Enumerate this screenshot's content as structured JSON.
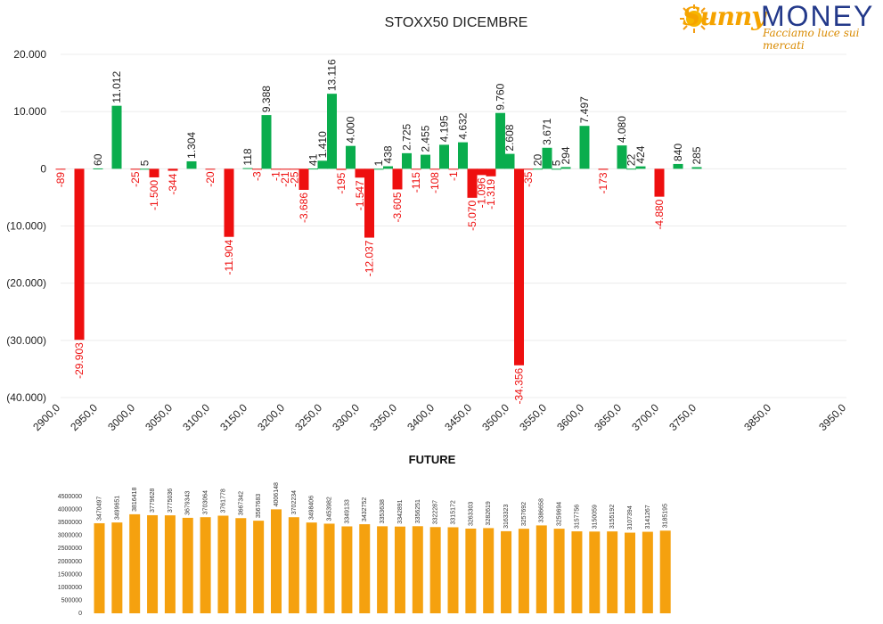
{
  "logo": {
    "part1": "Sunny",
    "part2": "MONEY",
    "tagline": "Facciamo luce sui mercati"
  },
  "colors": {
    "positive": "#0aad4d",
    "negative": "#ee0f0f",
    "future": "#f5a10f",
    "grid": "#ececec",
    "axis": "#bbbbbb"
  },
  "chart_data": [
    {
      "type": "bar",
      "title": "STOXX50 DICEMBRE",
      "ylim": [
        -40000,
        20000
      ],
      "yticks": [
        20000,
        10000,
        0,
        -10000,
        -20000,
        -30000,
        -40000
      ],
      "ytick_labels": [
        "20.000",
        "10.000",
        "0",
        "(10.000)",
        "(20.000)",
        "(30.000)",
        "(40.000)"
      ],
      "xlim": [
        2900,
        3950
      ],
      "xticks": [
        2900,
        2950,
        3000,
        3050,
        3100,
        3150,
        3200,
        3250,
        3300,
        3350,
        3400,
        3450,
        3500,
        3550,
        3600,
        3650,
        3700,
        3750,
        3850,
        3950
      ],
      "xtick_labels": [
        "2900,0",
        "2950,0",
        "3000,0",
        "3050,0",
        "3100,0",
        "3150,0",
        "3200,0",
        "3250,0",
        "3300,0",
        "3350,0",
        "3400,0",
        "3450,0",
        "3500,0",
        "3550,0",
        "3600,0",
        "3650,0",
        "3700,0",
        "3750,0",
        "3850,0",
        "3950,0"
      ],
      "series": [
        {
          "points": [
            {
              "x": 2900,
              "y": -89,
              "label": "-89"
            },
            {
              "x": 2925,
              "y": -29903,
              "label": "-29.903"
            },
            {
              "x": 2950,
              "y": 60,
              "label": "60"
            },
            {
              "x": 2975,
              "y": 11012,
              "label": "11.012"
            },
            {
              "x": 3000,
              "y": -25,
              "label": "-25"
            },
            {
              "x": 3012.5,
              "y": 5,
              "label": "5"
            },
            {
              "x": 3025,
              "y": -1500,
              "label": "-1.500"
            },
            {
              "x": 3050,
              "y": -344,
              "label": "-344"
            },
            {
              "x": 3075,
              "y": 1304,
              "label": "1.304"
            },
            {
              "x": 3100,
              "y": -20,
              "label": "-20"
            },
            {
              "x": 3125,
              "y": -11904,
              "label": "-11.904"
            },
            {
              "x": 3150,
              "y": 118,
              "label": "118"
            },
            {
              "x": 3162.5,
              "y": -3,
              "label": "-3"
            },
            {
              "x": 3175,
              "y": 9388,
              "label": "9.388"
            },
            {
              "x": 3187.5,
              "y": -1,
              "label": "-1"
            },
            {
              "x": 3200,
              "y": -21,
              "label": "-21"
            },
            {
              "x": 3212.5,
              "y": -25,
              "label": "-25"
            },
            {
              "x": 3225,
              "y": -3686,
              "label": "-3.686"
            },
            {
              "x": 3237.5,
              "y": 41,
              "label": "41"
            },
            {
              "x": 3250,
              "y": 1410,
              "label": "1.410"
            },
            {
              "x": 3262.5,
              "y": 13116,
              "label": "13.116"
            },
            {
              "x": 3275,
              "y": -195,
              "label": "-195"
            },
            {
              "x": 3287.5,
              "y": 4000,
              "label": "4.000"
            },
            {
              "x": 3300,
              "y": -1547,
              "label": "-1.547"
            },
            {
              "x": 3312.5,
              "y": -12037,
              "label": "-12.037"
            },
            {
              "x": 3325,
              "y": 1,
              "label": "1"
            },
            {
              "x": 3337.5,
              "y": 438,
              "label": "438"
            },
            {
              "x": 3350,
              "y": -3605,
              "label": "-3.605"
            },
            {
              "x": 3362.5,
              "y": 2725,
              "label": "2.725"
            },
            {
              "x": 3375,
              "y": -115,
              "label": "-115"
            },
            {
              "x": 3387.5,
              "y": 2455,
              "label": "2.455"
            },
            {
              "x": 3400,
              "y": -108,
              "label": "-108"
            },
            {
              "x": 3412.5,
              "y": 4195,
              "label": "4.195"
            },
            {
              "x": 3425,
              "y": -1,
              "label": "-1"
            },
            {
              "x": 3437.5,
              "y": 4632,
              "label": "4.632"
            },
            {
              "x": 3450,
              "y": -5070,
              "label": "-5.070"
            },
            {
              "x": 3462.5,
              "y": -1096,
              "label": "-1.096"
            },
            {
              "x": 3475,
              "y": -1319,
              "label": "-1.319"
            },
            {
              "x": 3487.5,
              "y": 9760,
              "label": "9.760"
            },
            {
              "x": 3500,
              "y": 2608,
              "label": "2.608"
            },
            {
              "x": 3512.5,
              "y": -34356,
              "label": "-34.356"
            },
            {
              "x": 3525,
              "y": -35,
              "label": "-35"
            },
            {
              "x": 3537.5,
              "y": 20,
              "label": "20"
            },
            {
              "x": 3550,
              "y": 3671,
              "label": "3.671"
            },
            {
              "x": 3562.5,
              "y": 5,
              "label": "5"
            },
            {
              "x": 3575,
              "y": 294,
              "label": "294"
            },
            {
              "x": 3600,
              "y": 7497,
              "label": "7.497"
            },
            {
              "x": 3625,
              "y": -173,
              "label": "-173"
            },
            {
              "x": 3650,
              "y": 4080,
              "label": "4.080"
            },
            {
              "x": 3662.5,
              "y": 22,
              "label": "22"
            },
            {
              "x": 3675,
              "y": 424,
              "label": "424"
            },
            {
              "x": 3700,
              "y": -4880,
              "label": "-4.880"
            },
            {
              "x": 3725,
              "y": 840,
              "label": "840"
            },
            {
              "x": 3750,
              "y": 285,
              "label": "285"
            }
          ]
        }
      ]
    },
    {
      "type": "bar",
      "title": "FUTURE",
      "ylim": [
        0,
        4500000
      ],
      "yticks": [
        0,
        500000,
        1000000,
        1500000,
        2000000,
        2500000,
        3000000,
        3500000,
        4000000,
        4500000
      ],
      "ytick_labels": [
        "0",
        "500000",
        "1000000",
        "1500000",
        "2000000",
        "2500000",
        "3000000",
        "3500000",
        "4000000",
        "4500000"
      ],
      "values": [
        3470497,
        3499651,
        3816418,
        3779628,
        3775036,
        3679343,
        3703064,
        3761778,
        3667342,
        3567683,
        4006148,
        3702234,
        3498406,
        3453982,
        3349133,
        3432752,
        3353638,
        3342891,
        3356251,
        3322287,
        3315172,
        3263303,
        3282619,
        3163323,
        3257692,
        3386658,
        3259694,
        3157756,
        3150059,
        3155192,
        3107394,
        3141267,
        3185195
      ],
      "value_labels": [
        "3470497",
        "3499651",
        "3816418",
        "3779628",
        "3775036",
        "3679343",
        "3703064",
        "3761778",
        "3667342",
        "3567683",
        "4006148",
        "3702234",
        "3498406",
        "3453982",
        "3349133",
        "3432752",
        "3353638",
        "3342891",
        "3356251",
        "3322287",
        "3315172",
        "3263303",
        "3282619",
        "3163323",
        "3257692",
        "3386658",
        "3259694",
        "3157756",
        "3150059",
        "3155192",
        "3107394",
        "3141267",
        "3185195"
      ]
    }
  ]
}
